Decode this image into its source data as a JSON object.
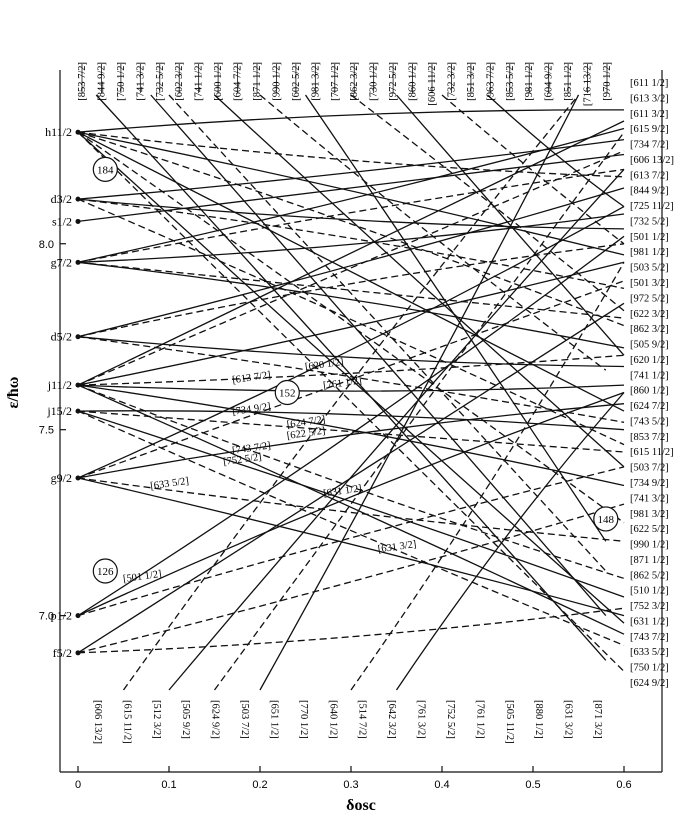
{
  "chart_data": {
    "type": "line",
    "title": "",
    "xlabel": "δosc",
    "ylabel": "ε/ħω",
    "xlim": [
      0,
      0.6
    ],
    "ylim": [
      6.8,
      8.4
    ],
    "x_ticks": [
      0,
      0.1,
      0.2,
      0.3,
      0.4,
      0.5,
      0.6
    ],
    "x_tick_labels": [
      "0",
      "0.1",
      "0.2",
      "0.3",
      "0.4",
      "0.5",
      "0.6"
    ],
    "y_ticks": [
      7.0,
      7.5,
      8.0
    ],
    "y_tick_labels": [
      "7.0",
      "7.5",
      "8.0"
    ],
    "grid": false,
    "spherical_levels": [
      {
        "label": "h11/2",
        "y": 8.3
      },
      {
        "label": "d3/2",
        "y": 8.12
      },
      {
        "label": "s1/2",
        "y": 8.06
      },
      {
        "label": "g7/2",
        "y": 7.95
      },
      {
        "label": "d5/2",
        "y": 7.75
      },
      {
        "label": "j11/2",
        "y": 7.62
      },
      {
        "label": "j15/2",
        "y": 7.55
      },
      {
        "label": "g9/2",
        "y": 7.37
      },
      {
        "label": "p1/2",
        "y": 7.0
      },
      {
        "label": "f5/2",
        "y": 6.9
      }
    ],
    "magic_numbers": [
      {
        "label": "184",
        "x": 0.03,
        "y": 8.2
      },
      {
        "label": "152",
        "x": 0.23,
        "y": 7.6
      },
      {
        "label": "148",
        "x": 0.58,
        "y": 7.26
      },
      {
        "label": "126",
        "x": 0.03,
        "y": 7.12
      }
    ],
    "top_labels": [
      "[853 7/2]",
      "[844 9/2]",
      "[750 1/2]",
      "[741 3/2]",
      "[732 5/2]",
      "[602 3/2]",
      "[741 1/2]",
      "[600 1/2]",
      "[604 7/2]",
      "[871 1/2]",
      "[990 1/2]",
      "[602 5/2]",
      "[981 3/2]",
      "[707 1/2]",
      "[862 3/2]",
      "[730 1/2]",
      "[972 5/2]",
      "[860 1/2]",
      "[606 11/2]",
      "[732 3/2]",
      "[851 3/2]",
      "[963 7/2]",
      "[853 5/2]",
      "[981 1/2]",
      "[604 9/2]",
      "[851 1/2]",
      "[716 13/2]",
      "[970 1/2]"
    ],
    "right_labels": [
      "[611 1/2]",
      "[613 3/2]",
      "[611 3/2]",
      "[615 9/2]",
      "[734 7/2]",
      "[606 13/2]",
      "[613 7/2]",
      "[844 9/2]",
      "[725 11/2]",
      "[732 5/2]",
      "[501 1/2]",
      "[981 1/2]",
      "[503 5/2]",
      "[501 3/2]",
      "[972 5/2]",
      "[622 3/2]",
      "[862 3/2]",
      "[505 9/2]",
      "[620 1/2]",
      "[741 1/2]",
      "[860 1/2]",
      "[624 7/2]",
      "[743 5/2]",
      "[853 7/2]",
      "[615 11/2]",
      "[503 7/2]",
      "[734 9/2]",
      "[741 3/2]",
      "[981 3/2]",
      "[622 5/2]",
      "[990 1/2]",
      "[871 1/2]",
      "[862 5/2]",
      "[510 1/2]",
      "[752 3/2]",
      "[631 1/2]",
      "[743 7/2]",
      "[633 5/2]",
      "[750 1/2]",
      "[624 9/2]"
    ],
    "bottom_labels": [
      "[606 13/2]",
      "[615 11/2]",
      "[512 3/2]",
      "[505 9/2]",
      "[624 9/2]",
      "[503 7/2]",
      "[651 1/2]",
      "[770 1/2]",
      "[640 1/2]",
      "[514 7/2]",
      "[642 3/2]",
      "[761 3/2]",
      "[752 5/2]",
      "[761 1/2]",
      "[505 11/2]",
      "[880 1/2]",
      "[631 3/2]",
      "[871 3/2]"
    ],
    "inner_labels": [
      {
        "label": "[620 1/2]",
        "x": 0.25,
        "y": 7.66
      },
      {
        "label": "[613 7/2]",
        "x": 0.17,
        "y": 7.625
      },
      {
        "label": "[761 1/2]",
        "x": 0.27,
        "y": 7.61
      },
      {
        "label": "[734 9/2]",
        "x": 0.17,
        "y": 7.54
      },
      {
        "label": "[624 7/2]",
        "x": 0.23,
        "y": 7.505
      },
      {
        "label": "[622 5/2]",
        "x": 0.23,
        "y": 7.475
      },
      {
        "label": "[743 7/2]",
        "x": 0.17,
        "y": 7.435
      },
      {
        "label": "[752 5/2]",
        "x": 0.16,
        "y": 7.405
      },
      {
        "label": "[633 5/2]",
        "x": 0.08,
        "y": 7.34
      },
      {
        "label": "[631 1/2]",
        "x": 0.27,
        "y": 7.32
      },
      {
        "label": "[631 3/2]",
        "x": 0.33,
        "y": 7.17
      },
      {
        "label": "[501 1/2]",
        "x": 0.05,
        "y": 7.09
      }
    ],
    "series": [
      {
        "style": "solid",
        "x": [
          0,
          0.6
        ],
        "y": [
          8.3,
          8.36
        ]
      },
      {
        "style": "solid",
        "x": [
          0,
          0.6
        ],
        "y": [
          8.3,
          7.97
        ]
      },
      {
        "style": "solid",
        "x": [
          0,
          0.6
        ],
        "y": [
          8.3,
          7.55
        ]
      },
      {
        "style": "solid",
        "x": [
          0,
          0.6
        ],
        "y": [
          8.3,
          6.98
        ]
      },
      {
        "style": "dashed",
        "x": [
          0,
          0.6
        ],
        "y": [
          8.3,
          8.18
        ]
      },
      {
        "style": "dashed",
        "x": [
          0,
          0.6
        ],
        "y": [
          8.3,
          7.78
        ]
      },
      {
        "style": "dashed",
        "x": [
          0,
          0.6
        ],
        "y": [
          8.3,
          7.25
        ]
      },
      {
        "style": "dashed",
        "x": [
          0,
          0.6
        ],
        "y": [
          8.3,
          6.85
        ]
      },
      {
        "style": "solid",
        "x": [
          0,
          0.6
        ],
        "y": [
          8.12,
          8.28
        ]
      },
      {
        "style": "solid",
        "x": [
          0,
          0.6
        ],
        "y": [
          8.12,
          8.04
        ]
      },
      {
        "style": "dashed",
        "x": [
          0,
          0.6
        ],
        "y": [
          8.12,
          7.88
        ]
      },
      {
        "style": "dashed",
        "x": [
          0,
          0.6
        ],
        "y": [
          8.12,
          7.46
        ]
      },
      {
        "style": "solid",
        "x": [
          0,
          0.6
        ],
        "y": [
          8.06,
          8.24
        ]
      },
      {
        "style": "solid",
        "x": [
          0,
          0.6
        ],
        "y": [
          7.95,
          8.31
        ]
      },
      {
        "style": "solid",
        "x": [
          0,
          0.6
        ],
        "y": [
          7.95,
          8.08
        ]
      },
      {
        "style": "solid",
        "x": [
          0,
          0.6
        ],
        "y": [
          7.95,
          7.72
        ]
      },
      {
        "style": "dashed",
        "x": [
          0,
          0.6
        ],
        "y": [
          7.95,
          8.2
        ]
      },
      {
        "style": "dashed",
        "x": [
          0,
          0.6
        ],
        "y": [
          7.95,
          7.8
        ]
      },
      {
        "style": "solid",
        "x": [
          0,
          0.6
        ],
        "y": [
          7.75,
          8.15
        ]
      },
      {
        "style": "solid",
        "x": [
          0,
          0.6
        ],
        "y": [
          7.75,
          7.67
        ]
      },
      {
        "style": "dashed",
        "x": [
          0,
          0.6
        ],
        "y": [
          7.75,
          8.0
        ]
      },
      {
        "style": "dashed",
        "x": [
          0,
          0.6
        ],
        "y": [
          7.75,
          7.52
        ]
      },
      {
        "style": "solid",
        "x": [
          0,
          0.6
        ],
        "y": [
          7.62,
          8.33
        ]
      },
      {
        "style": "solid",
        "x": [
          0,
          0.6
        ],
        "y": [
          7.62,
          7.95
        ]
      },
      {
        "style": "solid",
        "x": [
          0,
          0.6
        ],
        "y": [
          7.62,
          7.62
        ]
      },
      {
        "style": "solid",
        "x": [
          0,
          0.6
        ],
        "y": [
          7.62,
          7.35
        ]
      },
      {
        "style": "solid",
        "x": [
          0,
          0.6
        ],
        "y": [
          7.62,
          6.95
        ]
      },
      {
        "style": "dashed",
        "x": [
          0,
          0.6
        ],
        "y": [
          7.62,
          8.25
        ]
      },
      {
        "style": "dashed",
        "x": [
          0,
          0.6
        ],
        "y": [
          7.62,
          7.7
        ]
      },
      {
        "style": "dashed",
        "x": [
          0,
          0.6
        ],
        "y": [
          7.62,
          7.1
        ]
      },
      {
        "style": "solid",
        "x": [
          0,
          0.6
        ],
        "y": [
          7.55,
          7.5
        ]
      },
      {
        "style": "solid",
        "x": [
          0,
          0.6
        ],
        "y": [
          7.55,
          7.05
        ]
      },
      {
        "style": "dashed",
        "x": [
          0,
          0.6
        ],
        "y": [
          7.55,
          7.44
        ]
      },
      {
        "style": "dashed",
        "x": [
          0,
          0.6
        ],
        "y": [
          7.55,
          6.92
        ]
      },
      {
        "style": "solid",
        "x": [
          0,
          0.6
        ],
        "y": [
          7.37,
          8.1
        ]
      },
      {
        "style": "solid",
        "x": [
          0,
          0.6
        ],
        "y": [
          7.37,
          7.57
        ]
      },
      {
        "style": "solid",
        "x": [
          0,
          0.6
        ],
        "y": [
          7.37,
          7.0
        ]
      },
      {
        "style": "dashed",
        "x": [
          0,
          0.6
        ],
        "y": [
          7.37,
          7.9
        ]
      },
      {
        "style": "dashed",
        "x": [
          0,
          0.6
        ],
        "y": [
          7.37,
          7.2
        ]
      },
      {
        "style": "solid",
        "x": [
          0,
          0.6
        ],
        "y": [
          7.0,
          8.02
        ]
      },
      {
        "style": "solid",
        "x": [
          0,
          0.6
        ],
        "y": [
          7.0,
          7.6
        ]
      },
      {
        "style": "dashed",
        "x": [
          0,
          0.6
        ],
        "y": [
          7.0,
          7.4
        ]
      },
      {
        "style": "solid",
        "x": [
          0,
          0.6
        ],
        "y": [
          6.9,
          7.84
        ]
      },
      {
        "style": "dashed",
        "x": [
          0,
          0.6
        ],
        "y": [
          6.9,
          7.3
        ]
      },
      {
        "style": "dashed",
        "x": [
          0,
          0.6
        ],
        "y": [
          6.9,
          7.02
        ]
      },
      {
        "style": "solid",
        "x": [
          0.02,
          0.58
        ],
        "y": [
          8.4,
          6.88
        ]
      },
      {
        "style": "solid",
        "x": [
          0.08,
          0.58
        ],
        "y": [
          8.4,
          7.0
        ]
      },
      {
        "style": "dashed",
        "x": [
          0.1,
          0.58
        ],
        "y": [
          8.4,
          7.12
        ]
      },
      {
        "style": "solid",
        "x": [
          0.15,
          0.6
        ],
        "y": [
          8.4,
          7.4
        ]
      },
      {
        "style": "dashed",
        "x": [
          0.2,
          0.58
        ],
        "y": [
          8.4,
          7.66
        ]
      },
      {
        "style": "solid",
        "x": [
          0.25,
          0.58
        ],
        "y": [
          8.4,
          7.2
        ]
      },
      {
        "style": "dashed",
        "x": [
          0.3,
          0.6
        ],
        "y": [
          8.4,
          7.82
        ]
      },
      {
        "style": "solid",
        "x": [
          0.35,
          0.6
        ],
        "y": [
          8.4,
          7.7
        ]
      },
      {
        "style": "dashed",
        "x": [
          0.4,
          0.6
        ],
        "y": [
          8.4,
          8.0
        ]
      },
      {
        "style": "solid",
        "x": [
          0.45,
          0.6
        ],
        "y": [
          8.4,
          8.1
        ]
      },
      {
        "style": "dashed",
        "x": [
          0.05,
          0.55
        ],
        "y": [
          6.8,
          8.4
        ]
      },
      {
        "style": "solid",
        "x": [
          0.1,
          0.6
        ],
        "y": [
          6.8,
          8.2
        ]
      },
      {
        "style": "dashed",
        "x": [
          0.15,
          0.6
        ],
        "y": [
          6.8,
          8.3
        ]
      },
      {
        "style": "solid",
        "x": [
          0.2,
          0.55
        ],
        "y": [
          6.8,
          8.4
        ]
      },
      {
        "style": "dashed",
        "x": [
          0.3,
          0.6
        ],
        "y": [
          6.8,
          7.95
        ]
      },
      {
        "style": "solid",
        "x": [
          0.35,
          0.6
        ],
        "y": [
          6.8,
          7.6
        ]
      }
    ]
  }
}
